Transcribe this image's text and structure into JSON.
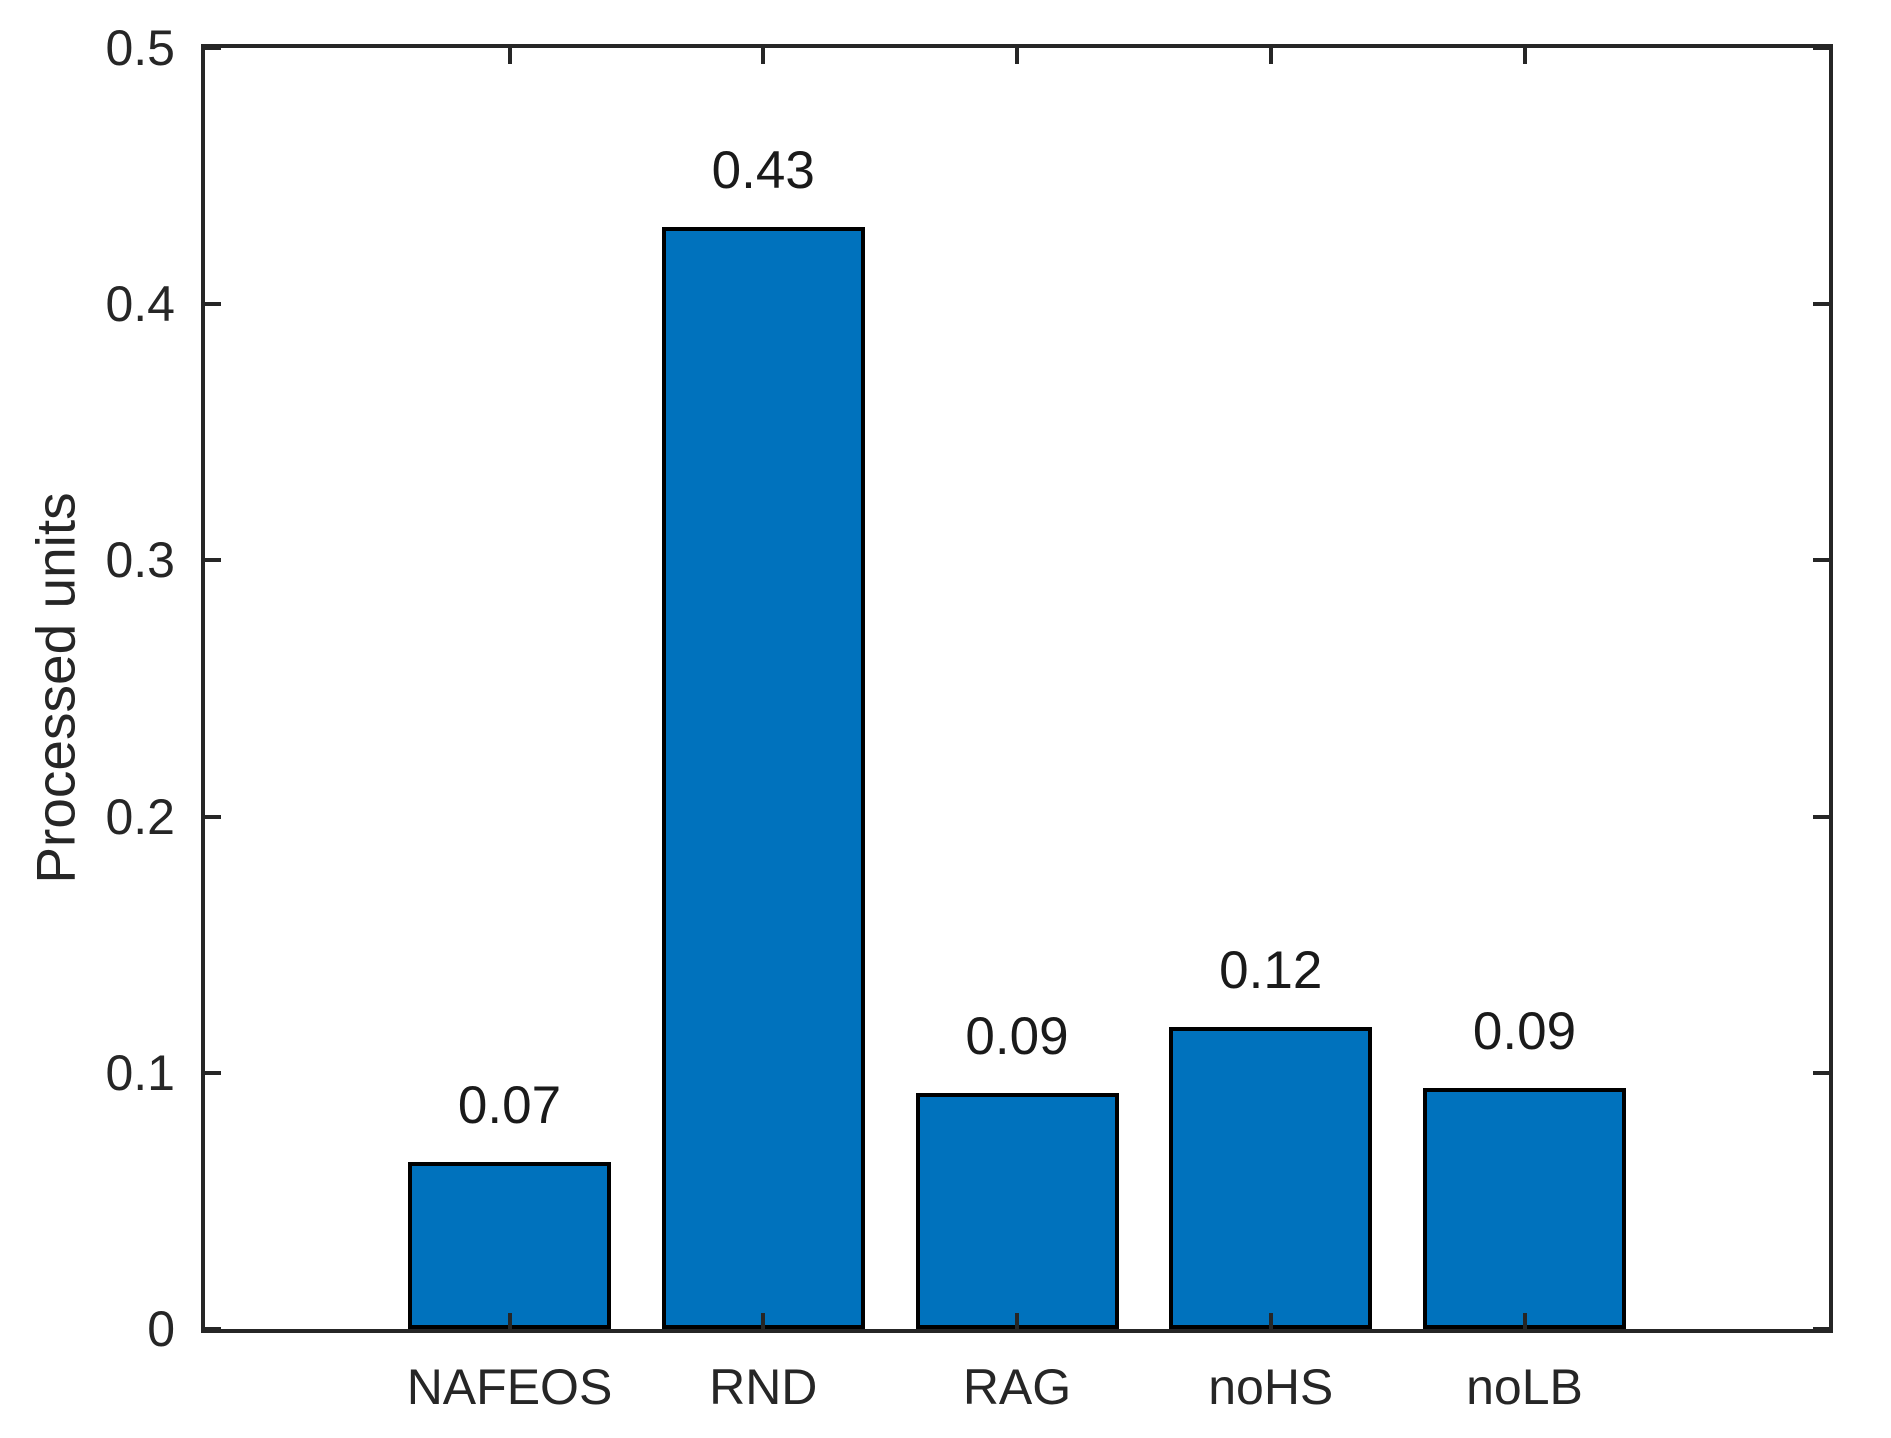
{
  "figure": {
    "background": "#ffffff"
  },
  "chart_data": {
    "type": "bar",
    "title": "",
    "xlabel": "",
    "ylabel": "Processed units",
    "categories": [
      "NAFEOS",
      "RND",
      "RAG",
      "noHS",
      "noLB"
    ],
    "values": [
      0.07,
      0.43,
      0.09,
      0.12,
      0.09
    ],
    "bar_value_labels": [
      "0.07",
      "0.43",
      "0.09",
      "0.12",
      "0.09"
    ],
    "bar_heights_estimated": [
      0.065,
      0.43,
      0.092,
      0.118,
      0.094
    ],
    "ylim": [
      0,
      0.5
    ],
    "yticks": [
      0,
      0.1,
      0.2,
      0.3,
      0.4,
      0.5
    ],
    "ytick_labels": [
      "0",
      "0.1",
      "0.2",
      "0.3",
      "0.4",
      "0.5"
    ],
    "grid": false,
    "legend": null,
    "box": true,
    "tick_direction": "in",
    "colors": {
      "bar_fill": "#0072BD",
      "bar_edge": "#000000",
      "axis": "#262626",
      "tick_text": "#262626",
      "bar_label_text": "#1a1a1a"
    }
  }
}
